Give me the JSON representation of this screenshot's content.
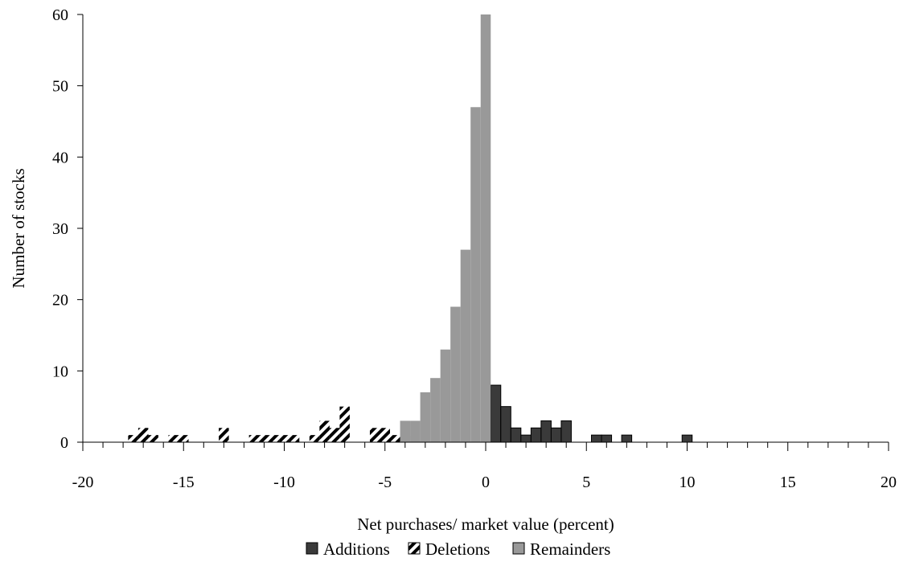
{
  "chart_data": {
    "type": "bar",
    "title": "",
    "xlabel": "Net purchases/ market value (percent)",
    "ylabel": "Number of stocks",
    "xlim": [
      -20,
      20
    ],
    "ylim": [
      0,
      60
    ],
    "bin_width": 0.5,
    "x_ticks": [
      -20,
      -15,
      -10,
      -5,
      0,
      5,
      10,
      15,
      20
    ],
    "x_tick_labels": [
      "-20",
      "-15",
      "-10",
      "-5",
      "0",
      "5",
      "10",
      "15",
      "20"
    ],
    "y_ticks": [
      0,
      10,
      20,
      30,
      40,
      50,
      60
    ],
    "y_tick_labels": [
      "0",
      "10",
      "20",
      "30",
      "40",
      "50",
      "60"
    ],
    "grid": false,
    "legend_position": "bottom",
    "series": [
      {
        "name": "Additions",
        "color": "#3a3a3a",
        "pattern": "solid-dark",
        "bins": [
          {
            "x0": 0.25,
            "value": 8
          },
          {
            "x0": 0.75,
            "value": 5
          },
          {
            "x0": 1.25,
            "value": 2
          },
          {
            "x0": 1.75,
            "value": 1
          },
          {
            "x0": 2.25,
            "value": 2
          },
          {
            "x0": 2.75,
            "value": 3
          },
          {
            "x0": 3.25,
            "value": 2
          },
          {
            "x0": 3.75,
            "value": 3
          },
          {
            "x0": 5.25,
            "value": 1
          },
          {
            "x0": 5.75,
            "value": 1
          },
          {
            "x0": 6.75,
            "value": 1
          },
          {
            "x0": 9.75,
            "value": 1
          }
        ]
      },
      {
        "name": "Deletions",
        "color": "#000000",
        "pattern": "diagonal-stripes",
        "bins": [
          {
            "x0": -17.75,
            "value": 1
          },
          {
            "x0": -17.25,
            "value": 2
          },
          {
            "x0": -16.75,
            "value": 1
          },
          {
            "x0": -15.75,
            "value": 1
          },
          {
            "x0": -15.25,
            "value": 1
          },
          {
            "x0": -13.25,
            "value": 2
          },
          {
            "x0": -11.75,
            "value": 1
          },
          {
            "x0": -11.25,
            "value": 1
          },
          {
            "x0": -10.75,
            "value": 1
          },
          {
            "x0": -10.25,
            "value": 1
          },
          {
            "x0": -9.75,
            "value": 1
          },
          {
            "x0": -8.75,
            "value": 1
          },
          {
            "x0": -8.25,
            "value": 3
          },
          {
            "x0": -7.75,
            "value": 2
          },
          {
            "x0": -7.25,
            "value": 5
          },
          {
            "x0": -5.75,
            "value": 2
          },
          {
            "x0": -5.25,
            "value": 2
          },
          {
            "x0": -4.75,
            "value": 1
          },
          {
            "x0": -4.25,
            "value": 1
          }
        ]
      },
      {
        "name": "Remainders",
        "color": "#999999",
        "pattern": "solid-light",
        "bins": [
          {
            "x0": -4.25,
            "value": 3
          },
          {
            "x0": -3.75,
            "value": 3
          },
          {
            "x0": -3.25,
            "value": 7
          },
          {
            "x0": -2.75,
            "value": 9
          },
          {
            "x0": -2.25,
            "value": 13
          },
          {
            "x0": -1.75,
            "value": 19
          },
          {
            "x0": -1.25,
            "value": 27
          },
          {
            "x0": -0.75,
            "value": 47
          },
          {
            "x0": -0.25,
            "value": 60
          }
        ]
      }
    ]
  }
}
